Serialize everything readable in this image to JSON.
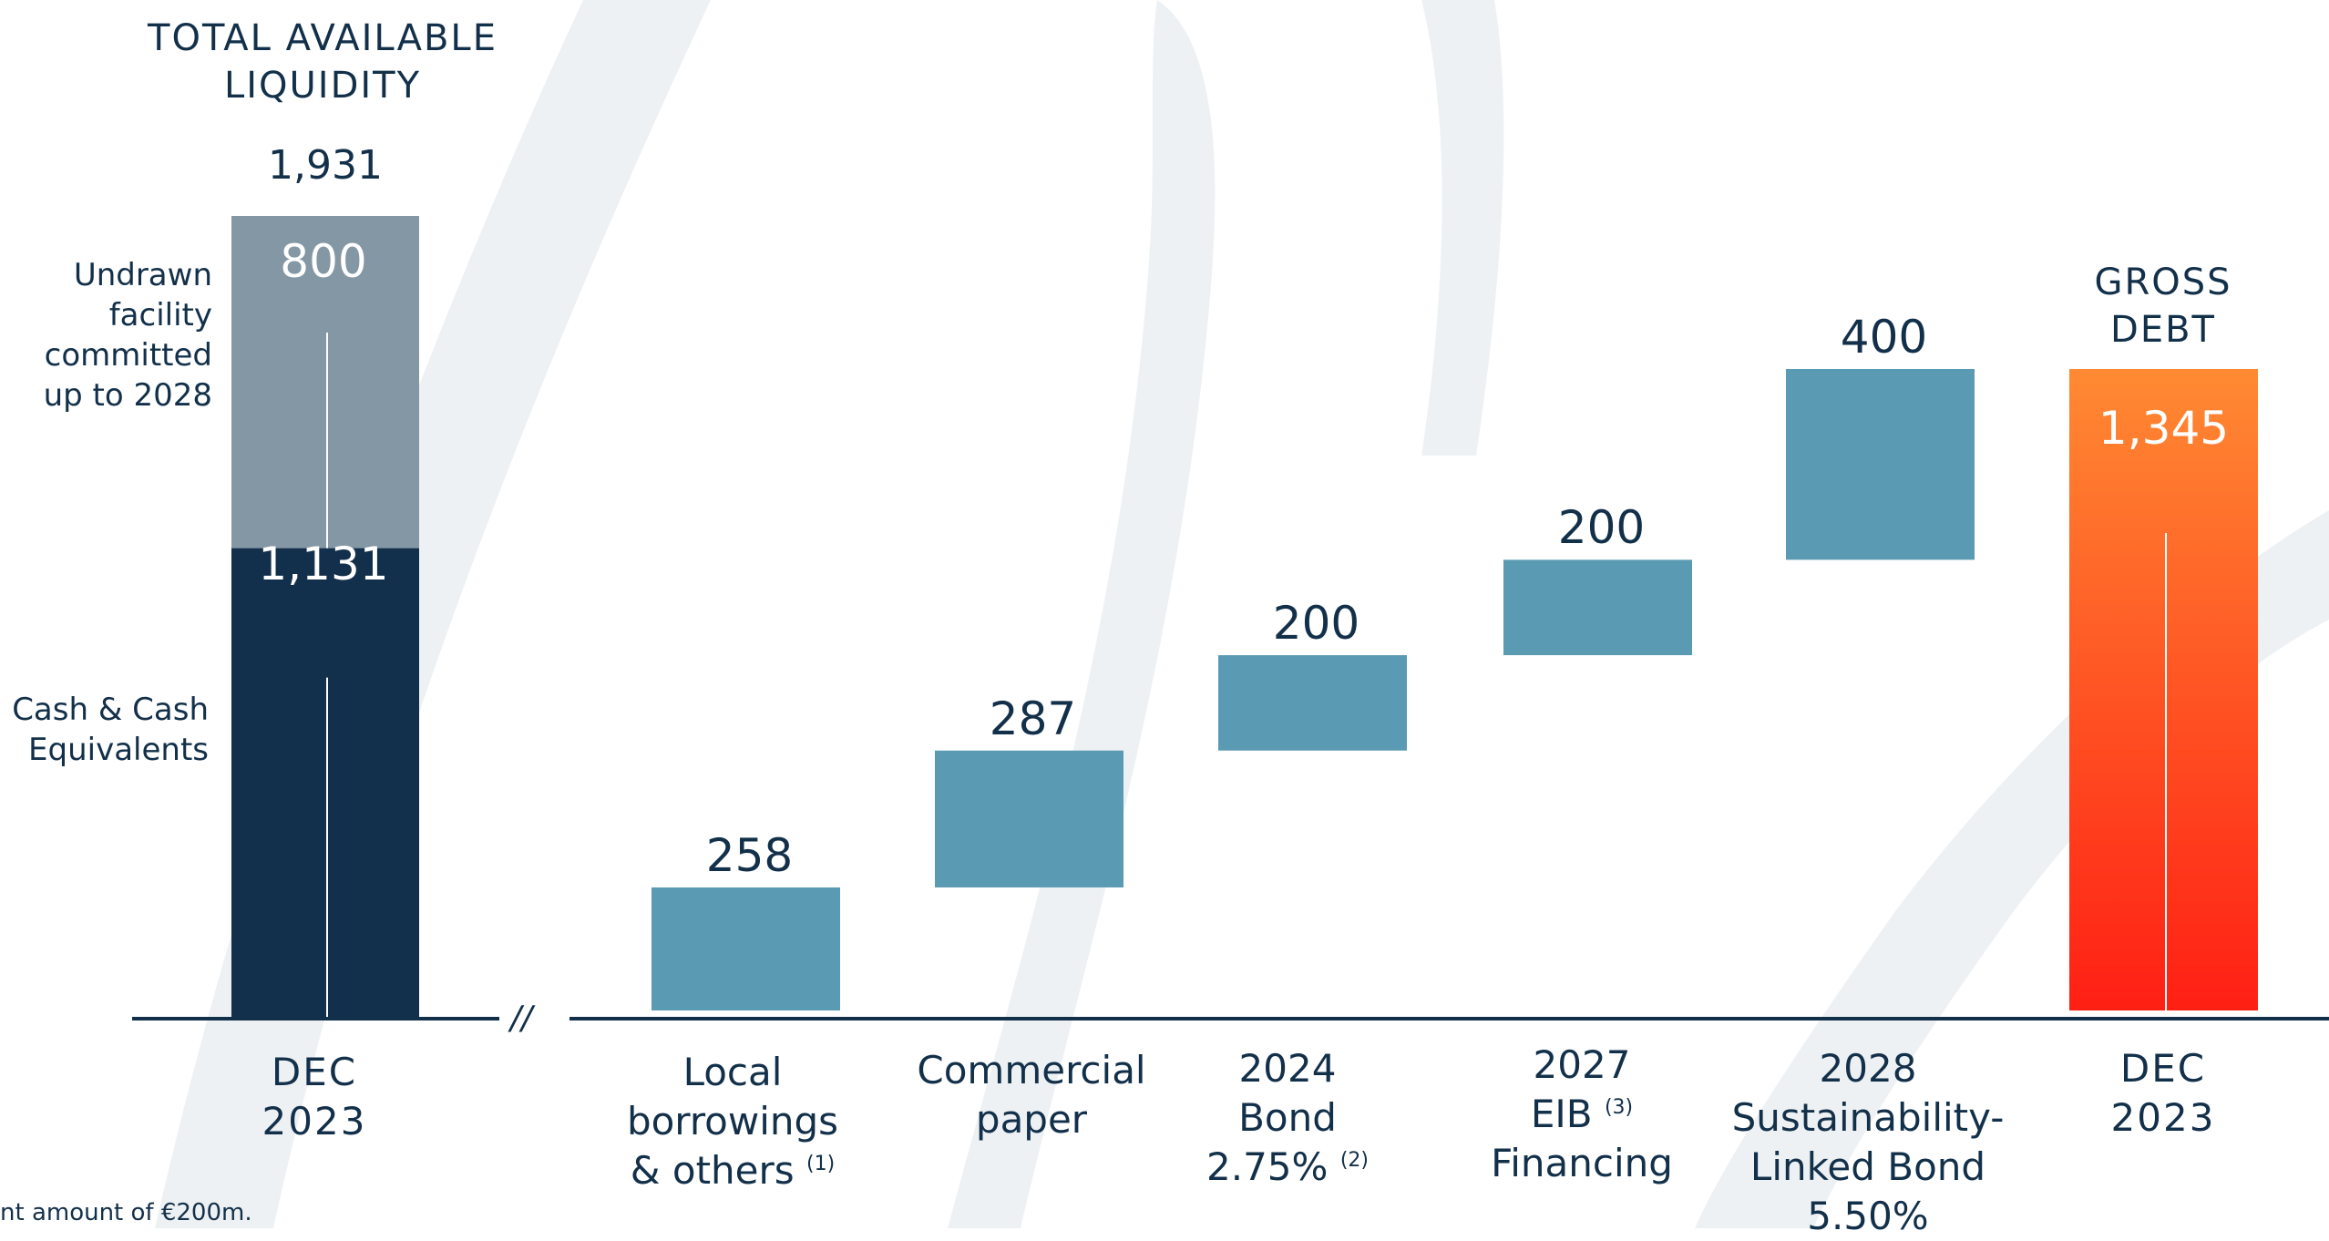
{
  "colors": {
    "text": "#13304a",
    "cash": "#12304b",
    "undrawn": "#8497a4",
    "debt_bar": "#5b9ab3",
    "gross_top": "#ff8a33",
    "gross_bottom": "#ff1f14",
    "axis": "#13304a",
    "watermark": "#eef1f3"
  },
  "liquidity": {
    "title_line1": "TOTAL AVAILABLE",
    "title_line2": "LIQUIDITY",
    "total_label": "1,931",
    "undrawn_label": "800",
    "cash_label": "1,131",
    "undrawn_desc": [
      "Undrawn",
      "facility",
      "committed",
      "up to 2028"
    ],
    "cash_desc": [
      "Cash & Cash",
      "Equivalents"
    ],
    "period_line1": "DEC",
    "period_line2": "2023"
  },
  "gross_debt": {
    "title_line1": "GROSS",
    "title_line2": "DEBT",
    "value_label": "1,345",
    "period_line1": "DEC",
    "period_line2": "2023"
  },
  "axis_break": "//",
  "categories": [
    {
      "lines": [
        "Local",
        "borrowings"
      ],
      "last": "& others",
      "note": "(1)"
    },
    {
      "lines": [
        "Commercial",
        "paper"
      ],
      "last": "",
      "note": ""
    },
    {
      "lines": [
        "2024",
        "Bond"
      ],
      "last": "2.75%",
      "note": "(2)"
    },
    {
      "lines": [
        "2027"
      ],
      "last": "EIB",
      "note": "(3)",
      "after": [
        "Financing"
      ]
    },
    {
      "lines": [
        "2028",
        "Sustainability-",
        "Linked Bond",
        "5.50%"
      ],
      "last": "",
      "note": ""
    }
  ],
  "footnote": "nt amount of €200m.",
  "chart_data": [
    {
      "type": "bar",
      "title": "TOTAL AVAILABLE LIQUIDITY",
      "categories": [
        "DEC 2023"
      ],
      "series": [
        {
          "name": "Cash & Cash Equivalents",
          "values": [
            1131
          ]
        },
        {
          "name": "Undrawn facility committed up to 2028",
          "values": [
            800
          ]
        }
      ],
      "total": 1931,
      "stacked": true
    },
    {
      "type": "bar",
      "subtype": "waterfall",
      "title": "GROSS DEBT",
      "categories": [
        "Local borrowings & others (1)",
        "Commercial paper",
        "2024 Bond 2.75% (2)",
        "2027 EIB (3) Financing",
        "2028 Sustainability-Linked Bond 5.50%",
        "DEC 2023"
      ],
      "values": [
        258,
        287,
        200,
        200,
        400,
        1345
      ],
      "value_labels": [
        "258",
        "287",
        "200",
        "200",
        "400",
        "1,345"
      ],
      "total_index": 5
    }
  ]
}
